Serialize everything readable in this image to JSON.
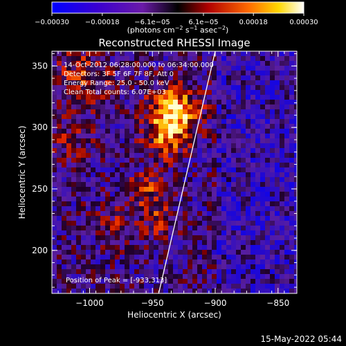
{
  "chart_data": {
    "type": "heatmap",
    "title": "Reconstructed RHESSI Image",
    "xlabel": "Heliocentric X (arcsec)",
    "ylabel": "Heliocentric Y (arcsec)",
    "xlim": [
      -1030,
      -835
    ],
    "ylim": [
      165,
      362
    ],
    "x_ticks": [
      -1000,
      -950,
      -900,
      -850
    ],
    "y_ticks": [
      200,
      250,
      300,
      350
    ],
    "x_tick_labels": [
      "−1000",
      "−950",
      "−900",
      "−850"
    ],
    "y_tick_labels": [
      "200",
      "250",
      "300",
      "350"
    ],
    "colorbar": {
      "min": -0.0003,
      "max": 0.0003,
      "ticks": [
        -0.0003,
        -0.00018,
        -6.1e-05,
        6.1e-05,
        0.00018,
        0.0003
      ],
      "tick_labels": [
        "−0.00030",
        "−0.00018",
        "−6.1e−05",
        "6.1e−05",
        "0.00018",
        "0.00030"
      ],
      "label_prefix": "(photons cm",
      "label_sup1": "−2",
      "label_mid": " s",
      "label_sup2": "−1",
      "label_mid2": " asec",
      "label_sup3": "−2",
      "label_suffix": ")"
    },
    "annotations": [
      "14-Oct-2012 06:28:00.000 to 06:34:00.000",
      "Detectors: 3F 5F 6F 7F 8F, Att 0",
      "Energy Range: 25.0 - 50.0 keV",
      "Clean    Total counts: 6.07E+03"
    ],
    "peak_label": "Position of Peak = [-933,313]",
    "peak": [
      -933,
      313
    ],
    "limb_line": [
      [
        -945,
        165
      ],
      [
        -900,
        362
      ]
    ],
    "colors": {
      "limb": "#ffffff",
      "text": "#ffffff",
      "background": "#000000"
    }
  },
  "footer": {
    "date": "15-May-2022 05:44"
  }
}
